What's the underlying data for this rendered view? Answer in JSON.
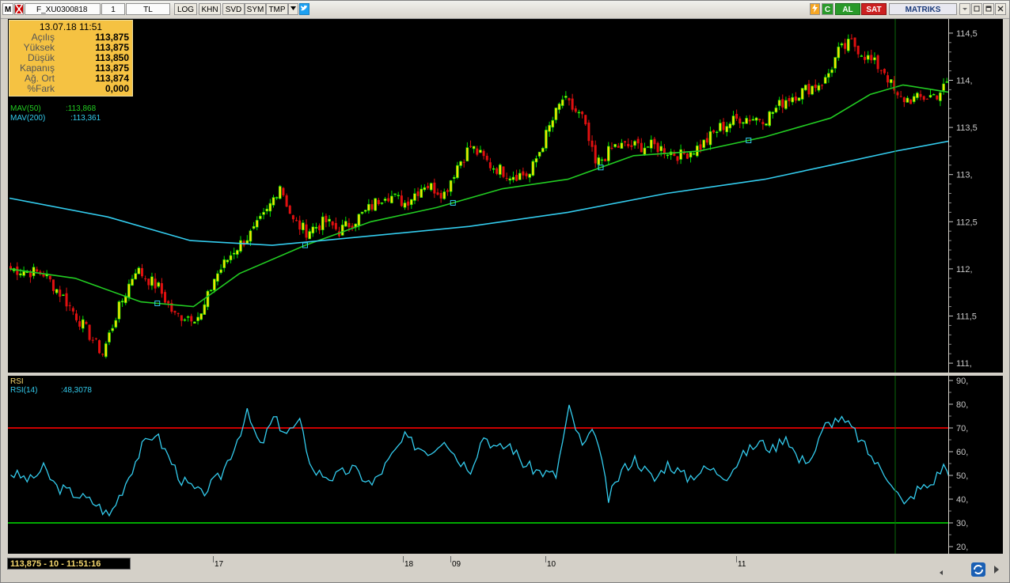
{
  "toolbar": {
    "logo_letter": "M",
    "symbol": "F_XU0300818",
    "period": "1",
    "currency": "TL",
    "buttons": [
      "LOG",
      "KHN",
      "SVD",
      "SYM",
      "TMP"
    ],
    "buy_label": "AL",
    "sell_label": "SAT",
    "brand": "MATRIKS"
  },
  "info_box": {
    "datetime": "13.07.18 11:51",
    "rows": [
      {
        "label": "Açılış",
        "value": "113,875"
      },
      {
        "label": "Yüksek",
        "value": "113,875"
      },
      {
        "label": "Düşük",
        "value": "113,850"
      },
      {
        "label": "Kapanış",
        "value": "113,875"
      },
      {
        "label": "Ağ. Ort",
        "value": "113,874"
      },
      {
        "label": "%Fark",
        "value": "0,000"
      }
    ]
  },
  "legend": {
    "mav50_label": "MAV(50)",
    "mav50_value": ":113,868",
    "mav200_label": "MAV(200)",
    "mav200_value": ":113,361",
    "rsi_title": "RSI",
    "rsi_label": "RSI(14)",
    "rsi_value": ":48,3078"
  },
  "status": {
    "readout": "113,875 - 10 - 11:51:16",
    "date_ticks": [
      "17",
      "18",
      "09",
      "10",
      "11"
    ]
  },
  "colors": {
    "up_candle": "#f5e000",
    "up_body_edge": "#00e000",
    "down_candle": "#e01010",
    "mav50": "#22cc22",
    "mav200": "#33ccee",
    "rsi_line": "#33ccee",
    "rsi_upper": "#cc0000",
    "rsi_lower": "#00aa00",
    "cursor": "#0a6a0a"
  },
  "chart_data": [
    {
      "type": "candlestick",
      "title": "F_XU0300818",
      "ylim": [
        110.9,
        114.65
      ],
      "y_ticks": [
        "114,5",
        "114,",
        "113,5",
        "113,",
        "112,5",
        "112,",
        "111,5",
        "111,"
      ],
      "last_price": 113.875,
      "close_anchors": [
        [
          0,
          112.0
        ],
        [
          10,
          111.95
        ],
        [
          16,
          111.7
        ],
        [
          22,
          111.4
        ],
        [
          28,
          111.1
        ],
        [
          32,
          111.5
        ],
        [
          38,
          112.0
        ],
        [
          45,
          111.8
        ],
        [
          50,
          111.5
        ],
        [
          58,
          111.5
        ],
        [
          62,
          111.9
        ],
        [
          68,
          112.2
        ],
        [
          74,
          112.4
        ],
        [
          78,
          112.6
        ],
        [
          82,
          112.9
        ],
        [
          86,
          112.5
        ],
        [
          90,
          112.4
        ],
        [
          96,
          112.5
        ],
        [
          100,
          112.4
        ],
        [
          108,
          112.6
        ],
        [
          114,
          112.8
        ],
        [
          120,
          112.7
        ],
        [
          126,
          112.9
        ],
        [
          132,
          112.8
        ],
        [
          136,
          113.1
        ],
        [
          140,
          113.3
        ],
        [
          146,
          113.1
        ],
        [
          152,
          113.0
        ],
        [
          158,
          113.0
        ],
        [
          164,
          113.5
        ],
        [
          168,
          113.8
        ],
        [
          174,
          113.6
        ],
        [
          178,
          113.1
        ],
        [
          184,
          113.3
        ],
        [
          190,
          113.3
        ],
        [
          196,
          113.3
        ],
        [
          204,
          113.2
        ],
        [
          210,
          113.3
        ],
        [
          216,
          113.5
        ],
        [
          222,
          113.6
        ],
        [
          230,
          113.6
        ],
        [
          236,
          113.8
        ],
        [
          242,
          113.9
        ],
        [
          248,
          114.0
        ],
        [
          252,
          114.3
        ],
        [
          256,
          114.4
        ],
        [
          262,
          114.2
        ],
        [
          266,
          114.1
        ],
        [
          270,
          113.8
        ],
        [
          276,
          113.8
        ],
        [
          282,
          113.85
        ],
        [
          285,
          113.95
        ],
        [
          287,
          113.875
        ]
      ],
      "series": [
        {
          "name": "MAV(50)",
          "last_value": 113.868,
          "points": [
            [
              0,
              112.0
            ],
            [
              20,
              111.9
            ],
            [
              40,
              111.65
            ],
            [
              56,
              111.6
            ],
            [
              70,
              111.95
            ],
            [
              90,
              112.25
            ],
            [
              110,
              112.5
            ],
            [
              130,
              112.65
            ],
            [
              150,
              112.85
            ],
            [
              170,
              112.95
            ],
            [
              190,
              113.2
            ],
            [
              210,
              113.25
            ],
            [
              230,
              113.4
            ],
            [
              250,
              113.6
            ],
            [
              262,
              113.85
            ],
            [
              272,
              113.95
            ],
            [
              287,
              113.868
            ]
          ]
        },
        {
          "name": "MAV(200)",
          "last_value": 113.361,
          "points": [
            [
              0,
              112.75
            ],
            [
              30,
              112.55
            ],
            [
              55,
              112.3
            ],
            [
              80,
              112.25
            ],
            [
              110,
              112.35
            ],
            [
              140,
              112.45
            ],
            [
              170,
              112.6
            ],
            [
              200,
              112.8
            ],
            [
              230,
              112.95
            ],
            [
              250,
              113.1
            ],
            [
              270,
              113.25
            ],
            [
              287,
              113.361
            ]
          ]
        }
      ]
    },
    {
      "type": "line",
      "title": "RSI",
      "ylim": [
        17,
        92
      ],
      "y_ticks": [
        "90,",
        "80,",
        "70,",
        "60,",
        "50,",
        "40,",
        "30,",
        "20,"
      ],
      "reference_lines": [
        70,
        30
      ],
      "series": [
        {
          "name": "RSI(14)",
          "last_value": 48.3078,
          "points": [
            [
              0,
              51
            ],
            [
              6,
              48
            ],
            [
              10,
              53
            ],
            [
              14,
              45
            ],
            [
              20,
              42
            ],
            [
              26,
              38
            ],
            [
              30,
              33
            ],
            [
              34,
              44
            ],
            [
              40,
              62
            ],
            [
              44,
              68
            ],
            [
              48,
              58
            ],
            [
              52,
              48
            ],
            [
              58,
              42
            ],
            [
              64,
              50
            ],
            [
              68,
              62
            ],
            [
              72,
              76
            ],
            [
              76,
              62
            ],
            [
              80,
              74
            ],
            [
              84,
              68
            ],
            [
              88,
              72
            ],
            [
              92,
              52
            ],
            [
              98,
              49
            ],
            [
              104,
              53
            ],
            [
              110,
              46
            ],
            [
              116,
              58
            ],
            [
              120,
              66
            ],
            [
              124,
              62
            ],
            [
              128,
              60
            ],
            [
              132,
              66
            ],
            [
              136,
              57
            ],
            [
              140,
              53
            ],
            [
              144,
              67
            ],
            [
              148,
              61
            ],
            [
              152,
              63
            ],
            [
              156,
              55
            ],
            [
              160,
              52
            ],
            [
              166,
              50
            ],
            [
              170,
              78
            ],
            [
              174,
              62
            ],
            [
              178,
              69
            ],
            [
              182,
              40
            ],
            [
              186,
              52
            ],
            [
              190,
              57
            ],
            [
              196,
              48
            ],
            [
              200,
              55
            ],
            [
              206,
              49
            ],
            [
              212,
              53
            ],
            [
              218,
              50
            ],
            [
              224,
              60
            ],
            [
              228,
              64
            ],
            [
              232,
              61
            ],
            [
              236,
              67
            ],
            [
              240,
              56
            ],
            [
              244,
              58
            ],
            [
              248,
              71
            ],
            [
              252,
              74
            ],
            [
              256,
              70
            ],
            [
              260,
              62
            ],
            [
              264,
              54
            ],
            [
              268,
              48
            ],
            [
              272,
              37
            ],
            [
              276,
              44
            ],
            [
              280,
              46
            ],
            [
              284,
              54
            ],
            [
              287,
              48.3
            ]
          ]
        }
      ]
    }
  ]
}
